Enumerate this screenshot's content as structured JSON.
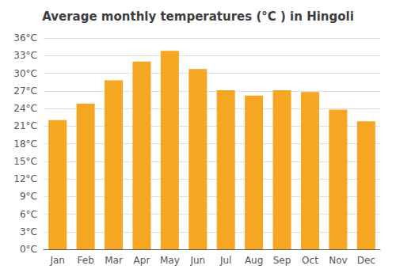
{
  "chart_data": {
    "type": "bar",
    "title": "Average monthly temperatures (°C ) in Hingoli",
    "categories": [
      "Jan",
      "Feb",
      "Mar",
      "Apr",
      "May",
      "Jun",
      "Jul",
      "Aug",
      "Sep",
      "Oct",
      "Nov",
      "Dec"
    ],
    "values": [
      22.0,
      24.8,
      28.8,
      32.0,
      33.8,
      30.7,
      27.1,
      26.2,
      27.1,
      26.8,
      23.8,
      21.8
    ],
    "color": "#F5A623",
    "ylim": [
      0,
      36
    ],
    "yticks": [
      {
        "value": 0,
        "label": "0°C"
      },
      {
        "value": 3,
        "label": "3°C"
      },
      {
        "value": 6,
        "label": "6°C"
      },
      {
        "value": 9,
        "label": "9°C"
      },
      {
        "value": 12,
        "label": "12°C"
      },
      {
        "value": 15,
        "label": "15°C"
      },
      {
        "value": 18,
        "label": "18°C"
      },
      {
        "value": 21,
        "label": "21°C"
      },
      {
        "value": 24,
        "label": "24°C"
      },
      {
        "value": 27,
        "label": "27°C"
      },
      {
        "value": 30,
        "label": "30°C"
      },
      {
        "value": 33,
        "label": "33°C"
      },
      {
        "value": 36,
        "label": "36°C"
      }
    ],
    "grid": true
  }
}
